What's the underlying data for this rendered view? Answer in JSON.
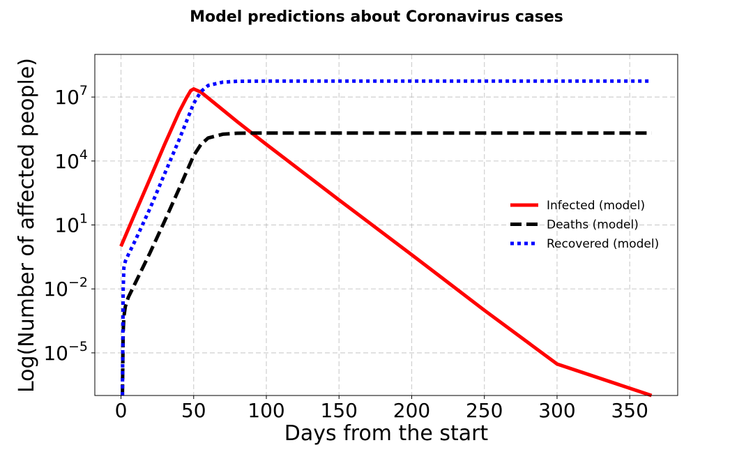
{
  "chart_data": {
    "type": "line",
    "title": "Model predictions about Coronavirus cases",
    "xlabel": "Days from the start",
    "ylabel": "Log(Number of affected people)",
    "y_scale": "log",
    "grid": true,
    "legend_placement": "center-right",
    "xlim": [
      -18,
      383
    ],
    "ylim": [
      1e-07,
      1000000000.0
    ],
    "x_ticks": [
      0,
      50,
      100,
      150,
      200,
      250,
      300,
      350
    ],
    "y_ticks": [
      {
        "value": 10000000.0,
        "base": "10",
        "exp": "7"
      },
      {
        "value": 10000.0,
        "base": "10",
        "exp": "4"
      },
      {
        "value": 10.0,
        "base": "10",
        "exp": "1"
      },
      {
        "value": 0.01,
        "base": "10",
        "exp": "−2"
      },
      {
        "value": 1e-05,
        "base": "10",
        "exp": "−5"
      }
    ],
    "series": [
      {
        "name": "Infected (model)",
        "color": "#ff0000",
        "style": "solid",
        "x": [
          0,
          10,
          20,
          30,
          40,
          45,
          48,
          50,
          55,
          60,
          70,
          80,
          100,
          150,
          200,
          250,
          300,
          365
        ],
        "y": [
          1,
          40,
          1500,
          60000,
          2000000,
          9000000,
          20000000,
          24000000,
          17000000,
          9000000,
          2500000,
          700000,
          60000,
          150,
          0.4,
          0.001,
          3e-06,
          1.5e-09
        ]
      },
      {
        "name": "Deaths (model)",
        "color": "#000000",
        "style": "dashed",
        "x": [
          1,
          1.5,
          2,
          3,
          5,
          10,
          20,
          30,
          40,
          45,
          50,
          55,
          60,
          70,
          80,
          90,
          100,
          150,
          200,
          250,
          300,
          365
        ],
        "y": [
          1e-07,
          0.0001,
          0.0005,
          0.0015,
          0.004,
          0.02,
          0.5,
          15,
          500,
          3000,
          18000,
          60000,
          120000,
          180000,
          200000,
          205000,
          205000,
          205000,
          205000,
          205000,
          205000,
          205000
        ]
      },
      {
        "name": "Recovered (model)",
        "color": "#0000ff",
        "style": "dotted",
        "x": [
          1,
          1.5,
          2,
          3,
          5,
          10,
          20,
          30,
          40,
          45,
          50,
          55,
          60,
          70,
          80,
          100,
          150,
          200,
          250,
          300,
          365
        ],
        "y": [
          1e-07,
          0.01,
          0.1,
          0.2,
          0.4,
          2,
          60,
          2500,
          100000,
          700000,
          5000000,
          18000000,
          35000000,
          50000000,
          55000000,
          56000000,
          56000000,
          56000000,
          56000000,
          56000000,
          56000000
        ]
      }
    ]
  }
}
